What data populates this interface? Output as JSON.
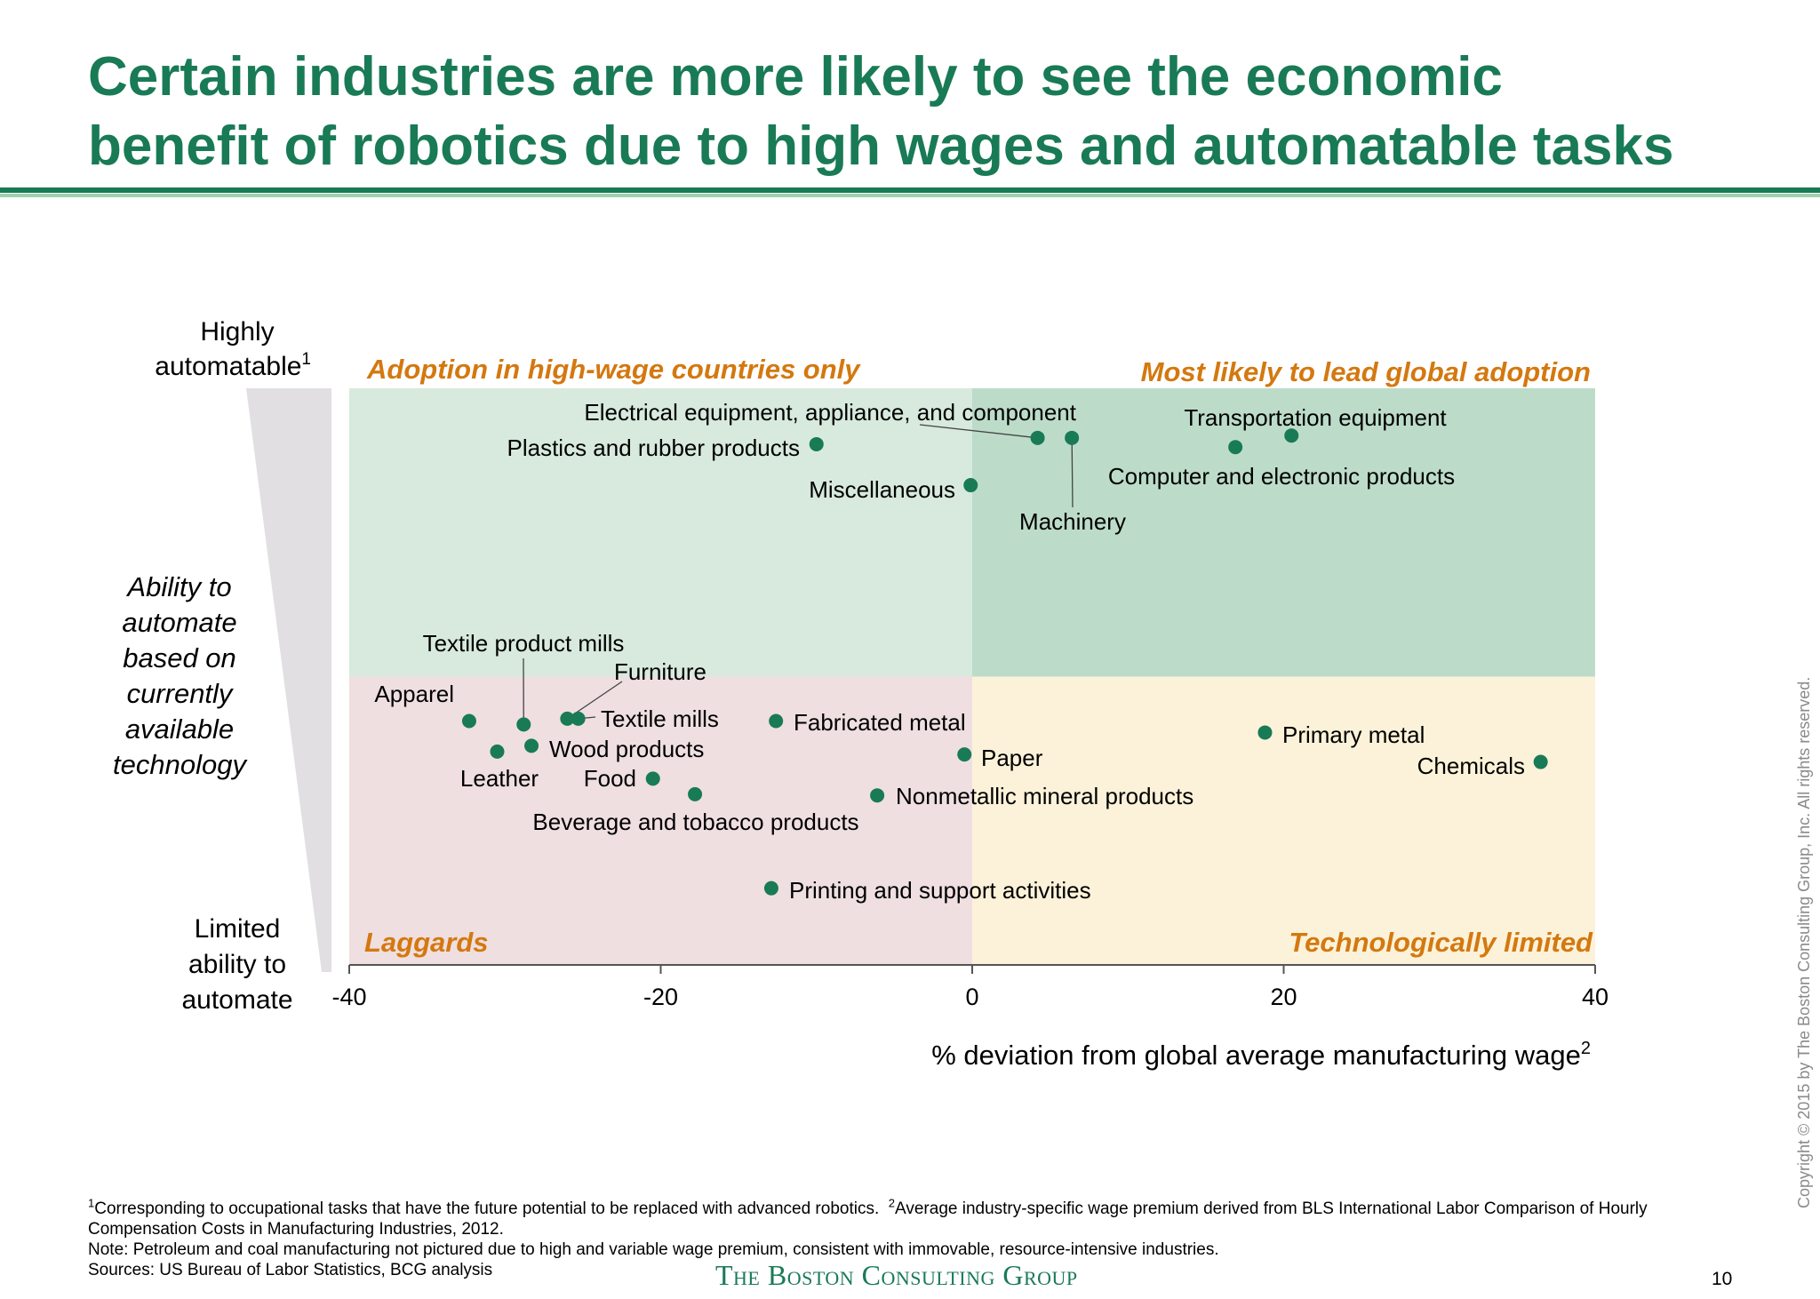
{
  "slide": {
    "title_line1": "Certain industries are more likely to see the economic",
    "title_line2": "benefit of robotics due to high wages and automatable tasks",
    "page_number": "10",
    "copyright": "Copyright © 2015 by The Boston Consulting Group, Inc. All rights reserved.",
    "brand": "The Boston Consulting Group",
    "footnotes": {
      "note1_mark": "1",
      "note1": "Corresponding to occupational tasks that have the future potential to be replaced with advanced robotics.",
      "note2_mark": "2",
      "note2": "Average industry-specific wage premium derived from BLS International Labor Comparison of Hourly Compensation Costs in Manufacturing Industries, 2012.",
      "note3": "Note:  Petroleum and coal manufacturing not pictured due to high and variable wage premium, consistent with immovable, resource-intensive industries.",
      "sources": "Sources: US Bureau of Labor Statistics, BCG analysis"
    }
  },
  "colors": {
    "brand_green": "#197a56",
    "quadrant_top_left": "#d7eadd",
    "quadrant_top_right": "#bcdcc9",
    "quadrant_bottom_left": "#efdfe1",
    "quadrant_bottom_right": "#fcf2d9",
    "quadrant_label": "#d4780f",
    "marker": "#197a56"
  },
  "chart_data": {
    "type": "scatter",
    "title": "",
    "xlabel": "% deviation from global average manufacturing wage",
    "xlabel_sup": "2",
    "ylabel": "Ability to automate based on currently available technology",
    "ylabel_lines": [
      "Ability to",
      "automate",
      "based on",
      "currently",
      "available",
      "technology"
    ],
    "y_top_label": [
      "Highly",
      "automatable"
    ],
    "y_top_sup": "1",
    "y_bottom_label": [
      "Limited",
      "ability to",
      "automate"
    ],
    "xlim": [
      -40,
      40
    ],
    "ylim": [
      0,
      100
    ],
    "xticks": [
      -40,
      -20,
      0,
      20,
      40
    ],
    "xtick_labels": [
      "-40",
      "-20",
      "0",
      "20",
      "40"
    ],
    "y_divider": 50,
    "x_divider": 0,
    "grid": false,
    "quadrants": {
      "top_left": "Adoption in high-wage countries only",
      "top_right": "Most likely to lead global adoption",
      "bottom_left": "Laggards",
      "bottom_right": "Technologically limited"
    },
    "points": [
      {
        "label": "Electrical equipment, appliance, and  component",
        "x": 4.2,
        "y": 91.4
      },
      {
        "label": "Plastics and rubber products",
        "x": -10.0,
        "y": 90.3
      },
      {
        "label": "Machinery",
        "x": 6.4,
        "y": 91.4
      },
      {
        "label": "Computer and electronic products",
        "x": 16.9,
        "y": 89.8
      },
      {
        "label": "Transportation equipment",
        "x": 20.5,
        "y": 91.8
      },
      {
        "label": "Miscellaneous",
        "x": -0.1,
        "y": 83.2
      },
      {
        "label": "Apparel",
        "x": -32.3,
        "y": 42.3
      },
      {
        "label": "Textile product mills",
        "x": -28.8,
        "y": 41.7
      },
      {
        "label": "Furniture",
        "x": -26.0,
        "y": 42.7
      },
      {
        "label": "Textile mills",
        "x": -25.3,
        "y": 42.7
      },
      {
        "label": "Leather",
        "x": -30.5,
        "y": 37.0
      },
      {
        "label": "Wood products",
        "x": -28.3,
        "y": 38.0
      },
      {
        "label": "Food",
        "x": -20.5,
        "y": 32.3
      },
      {
        "label": "Beverage and tobacco products",
        "x": -17.8,
        "y": 29.6
      },
      {
        "label": "Fabricated metal",
        "x": -12.6,
        "y": 42.3
      },
      {
        "label": "Paper",
        "x": -0.5,
        "y": 36.5
      },
      {
        "label": "Nonmetallic mineral products",
        "x": -6.1,
        "y": 29.4
      },
      {
        "label": "Printing and support activities",
        "x": -12.9,
        "y": 13.3
      },
      {
        "label": "Primary metal",
        "x": 18.8,
        "y": 40.3
      },
      {
        "label": "Chemicals",
        "x": 36.5,
        "y": 35.2
      }
    ]
  }
}
